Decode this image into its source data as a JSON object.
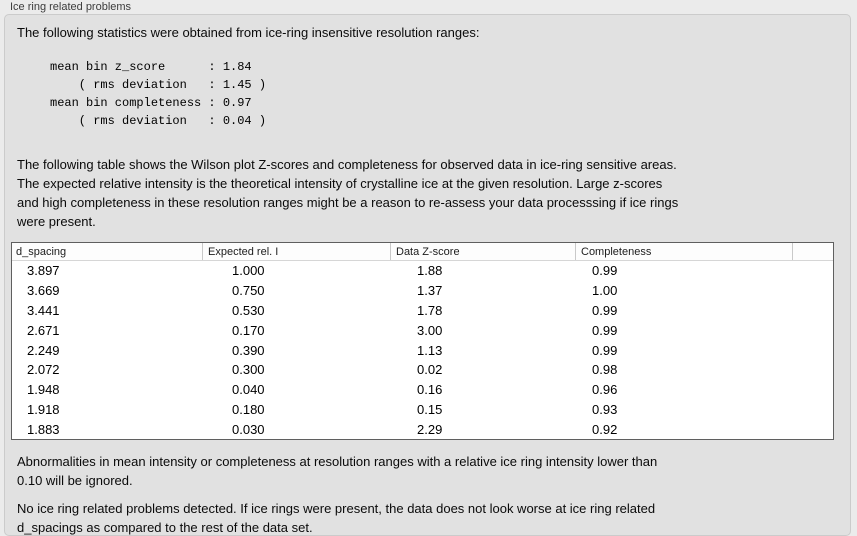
{
  "group_title": "Ice ring related problems",
  "intro_text": "The following statistics were obtained from ice-ring insensitive resolution ranges:",
  "stats_block": "mean bin z_score      : 1.84\n    ( rms deviation   : 1.45 )\nmean bin completeness : 0.97\n    ( rms deviation   : 0.04 )",
  "summary_stats": {
    "mean_bin_z_score": "1.84",
    "mean_bin_z_score_rms_deviation": "1.45",
    "mean_bin_completeness": "0.97",
    "mean_bin_completeness_rms_deviation": "0.04"
  },
  "table_description": "The following table shows the Wilson plot Z-scores and completeness for observed data in ice-ring sensitive areas.\nThe expected relative intensity is the theoretical intensity of crystalline ice at the given resolution. Large z-scores\nand high completeness in these resolution ranges might be a reason to re-assess your data processsing if ice rings\nwere present.",
  "table": {
    "columns": [
      "d_spacing",
      "Expected rel. I",
      "Data Z-score",
      "Completeness",
      ""
    ],
    "rows": [
      [
        "3.897",
        "1.000",
        "1.88",
        "0.99"
      ],
      [
        "3.669",
        "0.750",
        "1.37",
        "1.00"
      ],
      [
        "3.441",
        "0.530",
        "1.78",
        "0.99"
      ],
      [
        "2.671",
        "0.170",
        "3.00",
        "0.99"
      ],
      [
        "2.249",
        "0.390",
        "1.13",
        "0.99"
      ],
      [
        "2.072",
        "0.300",
        "0.02",
        "0.98"
      ],
      [
        "1.948",
        "0.040",
        "0.16",
        "0.96"
      ],
      [
        "1.918",
        "0.180",
        "0.15",
        "0.93"
      ],
      [
        "1.883",
        "0.030",
        "2.29",
        "0.92"
      ]
    ]
  },
  "ignore_note": "Abnormalities in mean intensity or completeness at resolution ranges with a relative ice ring intensity lower than\n0.10 will be ignored.",
  "conclusion_note": "No ice ring related problems detected. If ice rings were present, the data does not look worse at ice ring related\nd_spacings as compared to the rest of the data set.",
  "colors": {
    "window_background": "#ebebeb",
    "groupbox_background": "#e1e1e1",
    "groupbox_border": "#cbcbcb",
    "table_background": "#ffffff",
    "table_border": "#5f5f5f",
    "text": "#0a0a0a"
  }
}
